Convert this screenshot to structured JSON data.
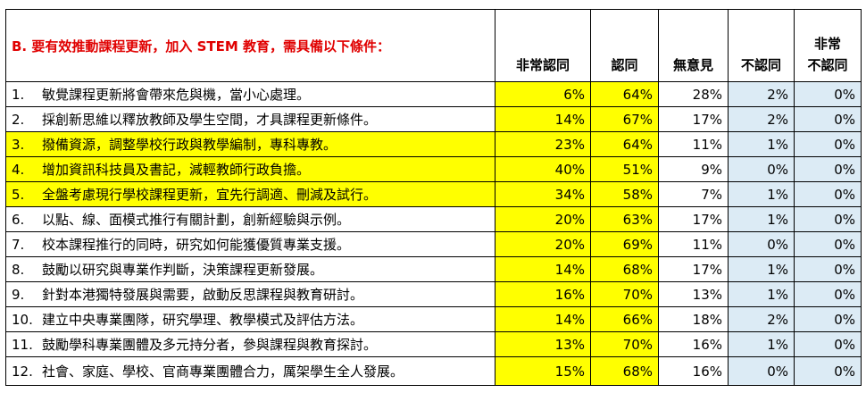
{
  "table": {
    "title": "B.  要有效推動課程更新，加入 STEM 教育，需具備以下條件：",
    "columns": [
      {
        "label_lines": [
          "非常認同"
        ]
      },
      {
        "label_lines": [
          "認同"
        ]
      },
      {
        "label_lines": [
          "無意見"
        ]
      },
      {
        "label_lines": [
          "不認同"
        ]
      },
      {
        "label_lines": [
          "非常",
          "不認同"
        ]
      }
    ],
    "rows": [
      {
        "num": "1.",
        "text": "敏覺課程更新將會帶來危與機，當小心處理。",
        "highlight": false,
        "values": [
          "6%",
          "64%",
          "28%",
          "2%",
          "0%"
        ]
      },
      {
        "num": "2.",
        "text": "採創新思維以釋放教師及學生空間，才具課程更新條件。",
        "highlight": false,
        "values": [
          "14%",
          "67%",
          "17%",
          "2%",
          "0%"
        ]
      },
      {
        "num": "3.",
        "text": "撥備資源，調整學校行政與教學編制，專科專教。",
        "highlight": true,
        "values": [
          "23%",
          "64%",
          "11%",
          "1%",
          "0%"
        ]
      },
      {
        "num": "4.",
        "text": "增加資訊科技員及書記，減輕教師行政負擔。",
        "highlight": true,
        "values": [
          "40%",
          "51%",
          "9%",
          "0%",
          "0%"
        ]
      },
      {
        "num": "5.",
        "text": "全盤考慮現行學校課程更新，宜先行調適、刪減及試行。",
        "highlight": true,
        "values": [
          "34%",
          "58%",
          "7%",
          "1%",
          "0%"
        ]
      },
      {
        "num": "6.",
        "text": "以點、線、面模式推行有關計劃，創新經驗與示例。",
        "highlight": false,
        "values": [
          "20%",
          "63%",
          "17%",
          "1%",
          "0%"
        ]
      },
      {
        "num": "7.",
        "text": "校本課程推行的同時，研究如何能獲優質專業支援。",
        "highlight": false,
        "values": [
          "20%",
          "69%",
          "11%",
          "0%",
          "0%"
        ]
      },
      {
        "num": "8.",
        "text": "鼓勵以研究與專業作判斷，決策課程更新發展。",
        "highlight": false,
        "values": [
          "14%",
          "68%",
          "17%",
          "1%",
          "0%"
        ]
      },
      {
        "num": "9.",
        "text": "針對本港獨特發展與需要，啟動反思課程與教育研討。",
        "highlight": false,
        "values": [
          "16%",
          "70%",
          "13%",
          "1%",
          "0%"
        ]
      },
      {
        "num": "10.",
        "text": "建立中央專業團隊，研究學理、教學模式及評估方法。",
        "highlight": false,
        "values": [
          "14%",
          "66%",
          "18%",
          "2%",
          "0%"
        ]
      },
      {
        "num": "11.",
        "text": "鼓勵學科專業團體及多元持分者，參與課程與教育探討。",
        "highlight": false,
        "values": [
          "13%",
          "70%",
          "16%",
          "1%",
          "0%"
        ]
      },
      {
        "num": "12.",
        "text": "社會、家庭、學校、官商專業團體合力，厲架學生全人發展。",
        "highlight": false,
        "values": [
          "15%",
          "68%",
          "16%",
          "0%",
          "0%"
        ]
      }
    ],
    "colors": {
      "title_text": "#e00000",
      "highlight_yellow": "#ffff00",
      "light_blue": "#dcebf5",
      "border": "#000000"
    }
  }
}
